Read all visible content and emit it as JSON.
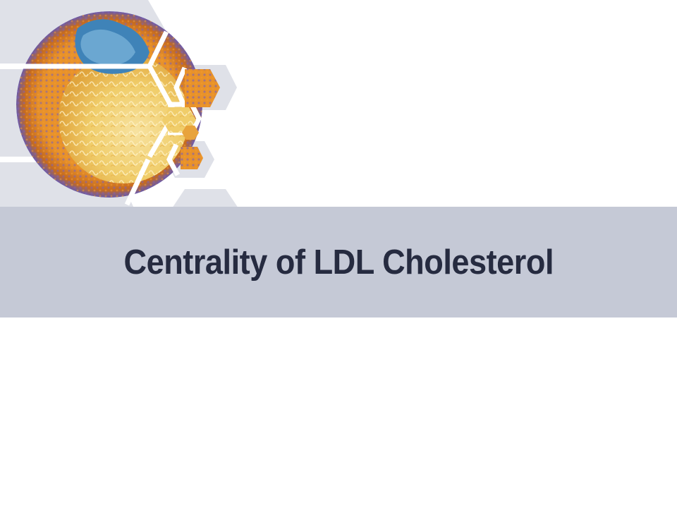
{
  "slide": {
    "title": "Centrality of LDL Cholesterol",
    "graphic_icon": "ldl-particle-hexagon-collage-icon"
  },
  "colors": {
    "band": "#c5c9d6",
    "title_text": "#262b40",
    "hex_backdrop": "#dfe1e8",
    "particle_orange": "#e8922a",
    "particle_purple": "#6a5aa8",
    "protein_blue": "#3f83b8",
    "core_yellow": "#f2cf6a"
  }
}
